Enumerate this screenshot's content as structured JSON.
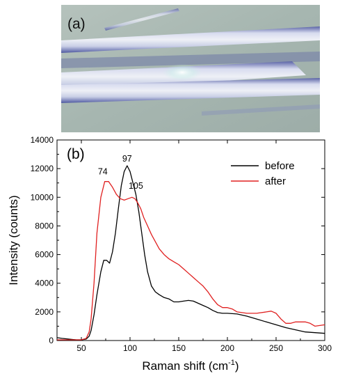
{
  "panel_a": {
    "label": "(a)",
    "colors": {
      "background": "#a9b8b3",
      "fiber": "#c9cfe6",
      "fiber_edge": "#5a63a6"
    }
  },
  "chart_data": {
    "type": "line",
    "panel_label": "(b)",
    "title": "",
    "xlabel": "Raman shift (cm",
    "xlabel_sup": "-1",
    "xlabel_close": ")",
    "ylabel": "Intensity (counts)",
    "xlim": [
      25,
      300
    ],
    "ylim": [
      0,
      14000
    ],
    "xticks": [
      50,
      100,
      150,
      200,
      250,
      300
    ],
    "yticks": [
      0,
      2000,
      4000,
      6000,
      8000,
      10000,
      12000,
      14000
    ],
    "legend_position": "top-right",
    "grid": false,
    "series": [
      {
        "name": "before",
        "color": "#000000",
        "x": [
          25,
          30,
          40,
          45,
          50,
          55,
          58,
          60,
          63,
          66,
          70,
          73,
          76,
          79,
          82,
          85,
          88,
          91,
          94,
          97,
          100,
          103,
          106,
          109,
          112,
          115,
          118,
          122,
          126,
          130,
          135,
          140,
          145,
          150,
          155,
          160,
          165,
          170,
          175,
          180,
          185,
          190,
          195,
          200,
          210,
          220,
          230,
          240,
          250,
          260,
          270,
          280,
          290,
          300
        ],
        "y": [
          200,
          150,
          80,
          50,
          50,
          100,
          300,
          700,
          1800,
          3200,
          4800,
          5600,
          5600,
          5400,
          6200,
          7500,
          9200,
          10800,
          11800,
          12200,
          11800,
          11000,
          10200,
          9000,
          7500,
          6000,
          4800,
          3800,
          3400,
          3200,
          3000,
          2900,
          2700,
          2700,
          2750,
          2800,
          2750,
          2600,
          2450,
          2300,
          2100,
          1950,
          1900,
          1900,
          1850,
          1700,
          1500,
          1300,
          1100,
          900,
          750,
          600,
          550,
          500
        ]
      },
      {
        "name": "after",
        "color": "#e02020",
        "x": [
          25,
          30,
          40,
          45,
          50,
          55,
          58,
          60,
          63,
          66,
          70,
          74,
          78,
          82,
          86,
          90,
          94,
          98,
          102,
          105,
          108,
          111,
          114,
          118,
          122,
          126,
          130,
          135,
          140,
          145,
          150,
          155,
          160,
          165,
          170,
          175,
          180,
          185,
          190,
          195,
          200,
          205,
          210,
          220,
          230,
          240,
          245,
          250,
          255,
          260,
          265,
          270,
          275,
          280,
          285,
          290,
          295,
          300
        ],
        "y": [
          50,
          50,
          50,
          50,
          50,
          150,
          600,
          1500,
          4000,
          7500,
          10000,
          11100,
          11100,
          10700,
          10200,
          9900,
          9800,
          9900,
          10000,
          9900,
          9600,
          9200,
          8600,
          8000,
          7400,
          6900,
          6400,
          6000,
          5700,
          5500,
          5300,
          5000,
          4700,
          4400,
          4100,
          3800,
          3400,
          2900,
          2500,
          2300,
          2300,
          2200,
          2000,
          1900,
          1900,
          2000,
          2050,
          1900,
          1500,
          1200,
          1200,
          1300,
          1300,
          1300,
          1200,
          1000,
          1050,
          1100
        ]
      }
    ],
    "annotations": [
      {
        "text": "74",
        "x": 72,
        "y": 11600
      },
      {
        "text": "97",
        "x": 97,
        "y": 12500
      },
      {
        "text": "105",
        "x": 106,
        "y": 10600
      }
    ]
  }
}
